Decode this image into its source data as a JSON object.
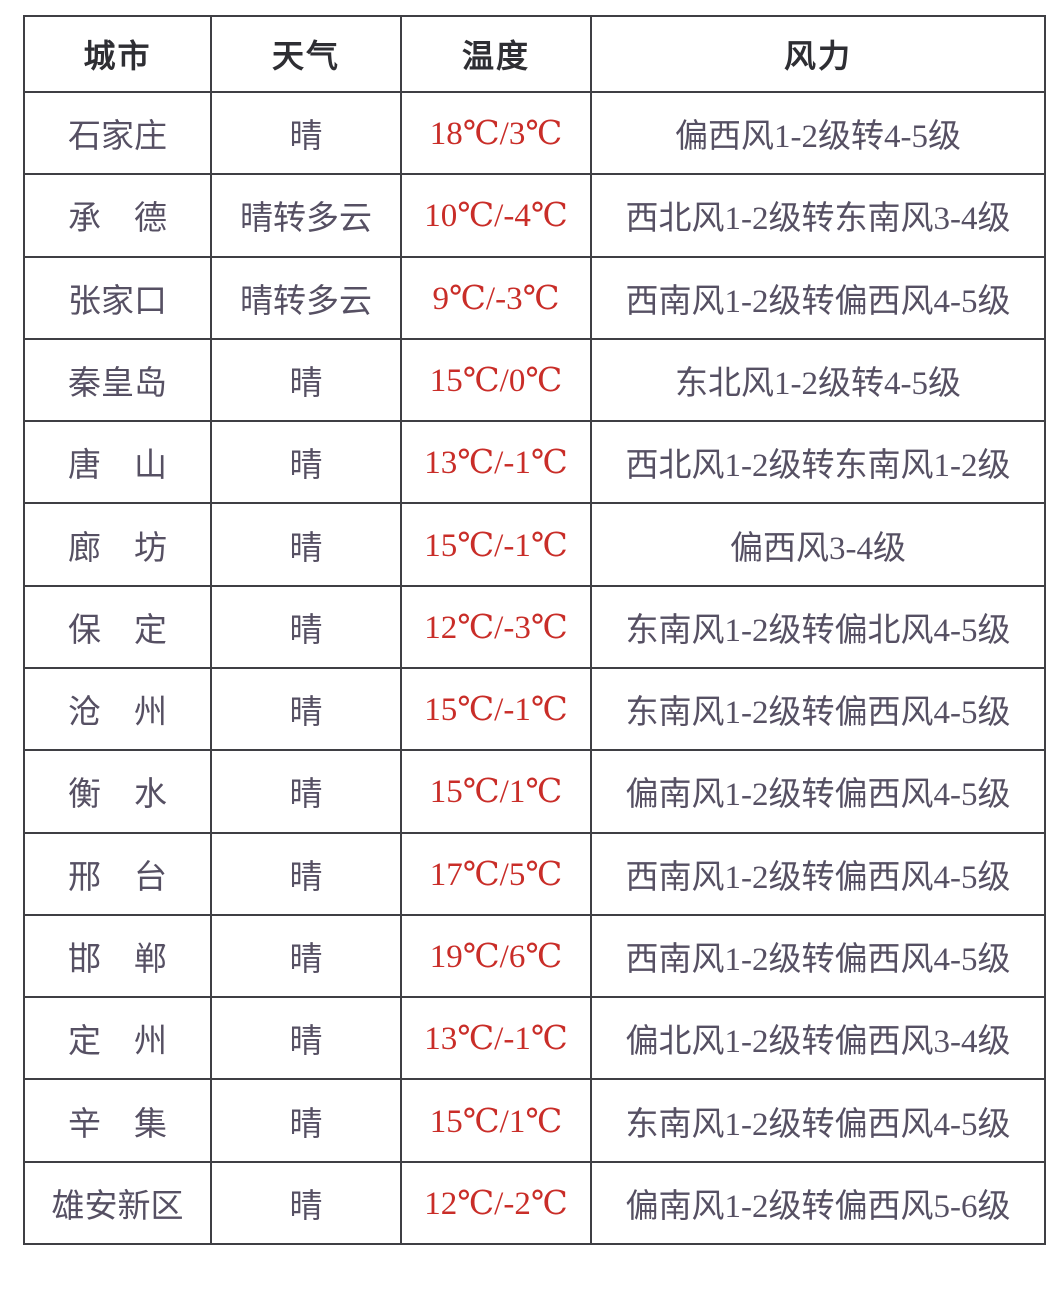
{
  "table": {
    "columns": [
      {
        "key": "city",
        "label": "城市"
      },
      {
        "key": "weather",
        "label": "天气"
      },
      {
        "key": "temp",
        "label": "温度"
      },
      {
        "key": "wind",
        "label": "风力"
      }
    ],
    "rows": [
      {
        "city": "石家庄",
        "weather": "晴",
        "temp": "18℃/3℃",
        "wind": "偏西风1-2级转4-5级"
      },
      {
        "city": "承　德",
        "weather": "晴转多云",
        "temp": "10℃/-4℃",
        "wind": "西北风1-2级转东南风3-4级"
      },
      {
        "city": "张家口",
        "weather": "晴转多云",
        "temp": "9℃/-3℃",
        "wind": "西南风1-2级转偏西风4-5级"
      },
      {
        "city": "秦皇岛",
        "weather": "晴",
        "temp": "15℃/0℃",
        "wind": "东北风1-2级转4-5级"
      },
      {
        "city": "唐　山",
        "weather": "晴",
        "temp": "13℃/-1℃",
        "wind": "西北风1-2级转东南风1-2级"
      },
      {
        "city": "廊　坊",
        "weather": "晴",
        "temp": "15℃/-1℃",
        "wind": "偏西风3-4级"
      },
      {
        "city": "保　定",
        "weather": "晴",
        "temp": "12℃/-3℃",
        "wind": "东南风1-2级转偏北风4-5级"
      },
      {
        "city": "沧　州",
        "weather": "晴",
        "temp": "15℃/-1℃",
        "wind": "东南风1-2级转偏西风4-5级"
      },
      {
        "city": "衡　水",
        "weather": "晴",
        "temp": "15℃/1℃",
        "wind": "偏南风1-2级转偏西风4-5级"
      },
      {
        "city": "邢　台",
        "weather": "晴",
        "temp": "17℃/5℃",
        "wind": "西南风1-2级转偏西风4-5级"
      },
      {
        "city": "邯　郸",
        "weather": "晴",
        "temp": "19℃/6℃",
        "wind": "西南风1-2级转偏西风4-5级"
      },
      {
        "city": "定　州",
        "weather": "晴",
        "temp": "13℃/-1℃",
        "wind": "偏北风1-2级转偏西风3-4级"
      },
      {
        "city": "辛　集",
        "weather": "晴",
        "temp": "15℃/1℃",
        "wind": "东南风1-2级转偏西风4-5级"
      },
      {
        "city": "雄安新区",
        "weather": "晴",
        "temp": "12℃/-2℃",
        "wind": "偏南风1-2级转偏西风5-6级"
      }
    ]
  },
  "colors": {
    "temperature_text": "#c92d28",
    "body_text": "#565063",
    "header_text": "#2e2e33",
    "border": "#3f3f44",
    "background": "#ffffff"
  }
}
